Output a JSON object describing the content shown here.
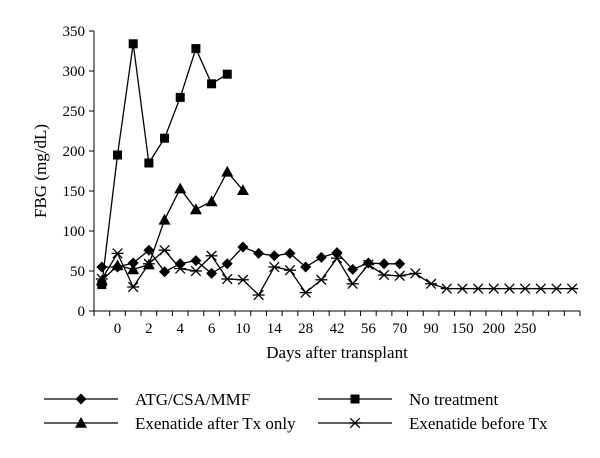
{
  "chart_data": {
    "type": "line",
    "title": "",
    "xlabel": "Days after transplant",
    "ylabel": "FBG (mg/dL)",
    "ylim": [
      0,
      350
    ],
    "y_ticks": [
      "0",
      "50",
      "100",
      "150",
      "200",
      "250",
      "300",
      "350"
    ],
    "x_tick_labels": [
      "0",
      "2",
      "4",
      "6",
      "10",
      "14",
      "28",
      "42",
      "56",
      "70",
      "90",
      "150",
      "200",
      "250"
    ],
    "x_axis_note": "ordinal (category) axis; x values below are positions in category steps, where tick '0' is step 1 and there are 31 steps in total",
    "grid": false,
    "legend_position": "bottom",
    "series": [
      {
        "name": "ATG/CSA/MMF",
        "marker": "diamond",
        "x": [
          0,
          1,
          2,
          3,
          4,
          5,
          6,
          7,
          8,
          9,
          10,
          11,
          12,
          13,
          14,
          15,
          16,
          17,
          18,
          19
        ],
        "values": [
          55,
          55,
          60,
          76,
          49,
          59,
          63,
          47,
          59,
          80,
          72,
          69,
          72,
          55,
          67,
          73,
          52,
          60,
          59,
          59
        ]
      },
      {
        "name": "No treatment",
        "marker": "square",
        "x": [
          0,
          1,
          2,
          3,
          4,
          5,
          6,
          7,
          8
        ],
        "values": [
          33,
          195,
          334,
          185,
          216,
          267,
          328,
          284,
          296
        ]
      },
      {
        "name": "Exenatide after Tx only",
        "marker": "triangle",
        "x": [
          0,
          1,
          2,
          3,
          4,
          5,
          6,
          7,
          8,
          9
        ],
        "values": [
          38,
          57,
          52,
          58,
          114,
          153,
          127,
          137,
          174,
          151
        ]
      },
      {
        "name": "Exenatide before Tx",
        "marker": "asterisk",
        "x": [
          0,
          1,
          2,
          3,
          4,
          5,
          6,
          7,
          8,
          9,
          10,
          11,
          12,
          13,
          14,
          15,
          16,
          17,
          18,
          19,
          20,
          21,
          22,
          23,
          24,
          25,
          26,
          27,
          28,
          29,
          30
        ],
        "values": [
          40,
          72,
          30,
          59,
          76,
          53,
          50,
          69,
          40,
          39,
          20,
          55,
          51,
          23,
          39,
          66,
          34,
          58,
          45,
          44,
          47,
          34,
          28,
          28,
          28,
          28,
          28,
          28,
          28,
          28,
          28
        ]
      }
    ]
  }
}
